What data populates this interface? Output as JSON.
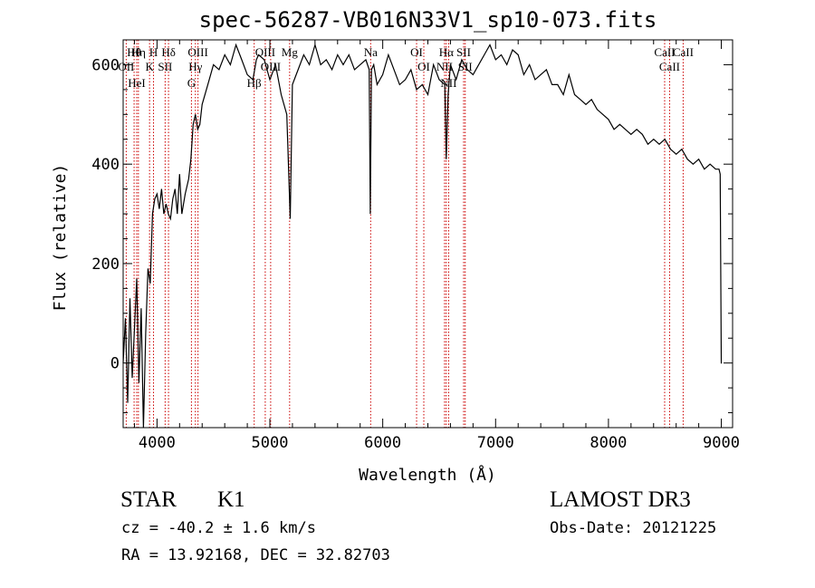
{
  "chart_data": {
    "type": "line",
    "title": "spec-56287-VB016N33V1_sp10-073.fits",
    "xlabel": "Wavelength (Å)",
    "ylabel": "Flux (relative)",
    "xlim": [
      3700,
      9100
    ],
    "ylim": [
      -130,
      650
    ],
    "x_ticks": [
      4000,
      5000,
      6000,
      7000,
      8000,
      9000
    ],
    "y_ticks": [
      0,
      200,
      400,
      600
    ],
    "series": [
      {
        "x": [
          3700,
          3720,
          3740,
          3760,
          3780,
          3800,
          3820,
          3840,
          3860,
          3880,
          3900,
          3920,
          3940,
          3960,
          3980,
          4000,
          4020,
          4040,
          4060,
          4080,
          4100,
          4120,
          4140,
          4160,
          4180,
          4200,
          4220,
          4250,
          4280,
          4300,
          4320,
          4340,
          4360,
          4380,
          4400,
          4450,
          4500,
          4550,
          4600,
          4650,
          4700,
          4750,
          4800,
          4850,
          4880,
          4900,
          4950,
          5000,
          5050,
          5100,
          5150,
          5180,
          5200,
          5250,
          5300,
          5350,
          5400,
          5450,
          5500,
          5550,
          5600,
          5650,
          5700,
          5750,
          5800,
          5850,
          5880,
          5890,
          5900,
          5920,
          5950,
          6000,
          6050,
          6100,
          6150,
          6200,
          6250,
          6300,
          6350,
          6400,
          6450,
          6500,
          6550,
          6563,
          6580,
          6600,
          6650,
          6700,
          6750,
          6800,
          6850,
          6900,
          6950,
          7000,
          7050,
          7100,
          7150,
          7200,
          7250,
          7300,
          7350,
          7400,
          7450,
          7500,
          7550,
          7600,
          7650,
          7700,
          7750,
          7800,
          7850,
          7900,
          7950,
          8000,
          8050,
          8100,
          8150,
          8200,
          8250,
          8300,
          8350,
          8400,
          8450,
          8500,
          8550,
          8600,
          8650,
          8700,
          8750,
          8800,
          8850,
          8900,
          8950,
          8980,
          8990,
          9000,
          9005
        ],
        "y": [
          0,
          90,
          -80,
          130,
          -30,
          70,
          170,
          -40,
          110,
          -130,
          60,
          190,
          160,
          300,
          330,
          340,
          310,
          350,
          300,
          320,
          300,
          290,
          330,
          350,
          300,
          380,
          300,
          340,
          370,
          410,
          480,
          500,
          470,
          480,
          520,
          560,
          600,
          590,
          620,
          600,
          640,
          610,
          580,
          570,
          610,
          620,
          610,
          570,
          600,
          540,
          500,
          290,
          560,
          590,
          620,
          600,
          640,
          600,
          610,
          590,
          620,
          600,
          620,
          590,
          600,
          610,
          590,
          300,
          590,
          600,
          560,
          580,
          620,
          590,
          560,
          570,
          590,
          550,
          560,
          540,
          600,
          570,
          560,
          410,
          540,
          600,
          570,
          610,
          590,
          580,
          600,
          620,
          640,
          610,
          620,
          600,
          630,
          620,
          580,
          600,
          570,
          580,
          590,
          560,
          560,
          540,
          580,
          540,
          530,
          520,
          530,
          510,
          500,
          490,
          470,
          480,
          470,
          460,
          470,
          460,
          440,
          450,
          440,
          450,
          430,
          420,
          430,
          410,
          400,
          410,
          390,
          400,
          390,
          390,
          380,
          0,
          0
        ]
      }
    ],
    "line_markers": [
      {
        "label": "Hθ",
        "x": 3797
      },
      {
        "label": "OII",
        "x": 3727
      },
      {
        "label": "HeI",
        "x": 3820
      },
      {
        "label": "Hη",
        "x": 3835
      },
      {
        "label": "K",
        "x": 3934
      },
      {
        "label": "H",
        "x": 3969
      },
      {
        "label": "SII",
        "x": 4072
      },
      {
        "label": "Hδ",
        "x": 4102
      },
      {
        "label": "OIII",
        "x": 4363
      },
      {
        "label": "Hγ",
        "x": 4340
      },
      {
        "label": "G",
        "x": 4305
      },
      {
        "label": "OIII",
        "x": 4959
      },
      {
        "label": "OIII",
        "x": 5007
      },
      {
        "label": "Hβ",
        "x": 4861
      },
      {
        "label": "Mg",
        "x": 5175
      },
      {
        "label": "Na",
        "x": 5893
      },
      {
        "label": "OI",
        "x": 6300
      },
      {
        "label": "OI",
        "x": 6364
      },
      {
        "label": "Hα",
        "x": 6563
      },
      {
        "label": "NII",
        "x": 6548
      },
      {
        "label": "NII",
        "x": 6584
      },
      {
        "label": "SII",
        "x": 6717
      },
      {
        "label": "SII",
        "x": 6731
      },
      {
        "label": "CaII",
        "x": 8498
      },
      {
        "label": "CaII",
        "x": 8542
      },
      {
        "label": "CaII",
        "x": 8662
      }
    ],
    "grid": false
  },
  "info": {
    "class": "STAR",
    "subclass": "K1",
    "survey": "LAMOST DR3",
    "cz": "cz = -40.2 ± 1.6 km/s",
    "obs_date": "Obs-Date: 20121225",
    "coords": "RA =  13.92168, DEC =  32.82703"
  }
}
